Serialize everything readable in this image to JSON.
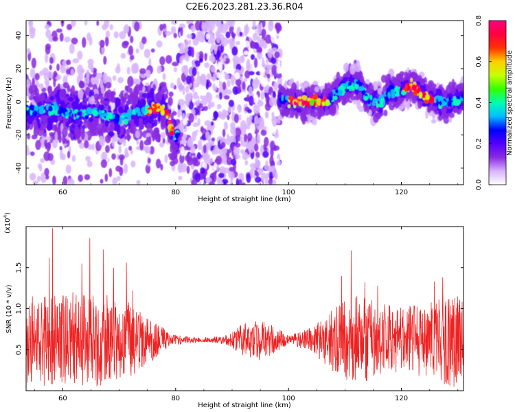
{
  "title": "C2E6.2023.281.23.36.R04",
  "chart_data": [
    {
      "type": "heatmap",
      "xlabel": "Height of straight line (km)",
      "ylabel": "Frequency (Hz)",
      "xlim": [
        53.5,
        131
      ],
      "ylim": [
        -50,
        49
      ],
      "x_ticks": [
        60,
        80,
        100,
        120
      ],
      "x_tick_labels": [
        "60",
        "80",
        "100",
        "120"
      ],
      "y_ticks": [
        40,
        20,
        0,
        -20,
        -40
      ],
      "y_tick_labels": [
        "40",
        "20",
        "0",
        "-20",
        "-40"
      ],
      "colorbar": {
        "label": "Normalized spectral amplitude",
        "range": [
          0,
          0.8
        ],
        "ticks": [
          0,
          0.2,
          0.4,
          0.6,
          0.8
        ],
        "tick_labels": [
          "0.0",
          "0.2",
          "0.4",
          "0.6",
          "0.8"
        ],
        "colors": [
          "#ffffff",
          "#d8b4fe",
          "#8a2be2",
          "#5200ff",
          "#0000ff",
          "#00bfff",
          "#00ffb0",
          "#33ff00",
          "#c8ff00",
          "#ffd000",
          "#ff3300",
          "#ff0040",
          "#ff0080"
        ]
      },
      "ridge": {
        "x": [
          54,
          58,
          62,
          66,
          70,
          74,
          76,
          78,
          80,
          82,
          86,
          90,
          94,
          98,
          100,
          104,
          106,
          108,
          110,
          112,
          114,
          116,
          118,
          120,
          122,
          124,
          126,
          128,
          131
        ],
        "y": [
          -6,
          -4,
          -8,
          -6,
          -10,
          -6,
          -4,
          -4,
          -25,
          5,
          0,
          0,
          0,
          3,
          0,
          0,
          -1,
          4,
          9,
          12,
          2,
          -1,
          6,
          7,
          10,
          3,
          1,
          -1,
          3
        ]
      },
      "noise_band_x": [
        80.5,
        98.5
      ]
    },
    {
      "type": "line",
      "xlabel": "Height of straight line (km)",
      "ylabel": "SNR (10 * v/v)",
      "y_multiplier": "(x10^4)",
      "y_multiplier_base": "(x10",
      "y_multiplier_exp": "4",
      "y_multiplier_close": ")",
      "xlim": [
        53.5,
        131
      ],
      "ylim": [
        0,
        2.0
      ],
      "x_ticks": [
        60,
        80,
        100,
        120
      ],
      "x_tick_labels": [
        "60",
        "80",
        "100",
        "120"
      ],
      "y_ticks": [
        0.5,
        1.0,
        1.5
      ],
      "y_tick_labels": [
        "0.5",
        "1.0",
        "1.5"
      ],
      "series": [
        {
          "color": "#ee2222",
          "baseline": 0.62,
          "amplitude_profile": {
            "x": [
              53.5,
              56,
              60,
              64,
              68,
              72,
              76,
              79,
              82,
              86,
              89,
              92,
              95,
              98,
              100,
              104,
              108,
              112,
              116,
              120,
              124,
              128,
              131
            ],
            "a": [
              0.55,
              0.6,
              0.55,
              0.6,
              0.55,
              0.45,
              0.25,
              0.08,
              0.04,
              0.03,
              0.06,
              0.2,
              0.25,
              0.15,
              0.05,
              0.15,
              0.4,
              0.55,
              0.45,
              0.4,
              0.45,
              0.55,
              0.6
            ]
          },
          "spikes": [
            {
              "x": 58.2,
              "y": 1.98
            },
            {
              "x": 57.6,
              "y": 1.62
            },
            {
              "x": 61.8,
              "y": 1.2
            },
            {
              "x": 63.4,
              "y": 1.55
            },
            {
              "x": 64.8,
              "y": 1.86
            },
            {
              "x": 67.2,
              "y": 1.72
            },
            {
              "x": 69.0,
              "y": 1.5
            },
            {
              "x": 71.3,
              "y": 1.56
            },
            {
              "x": 72.4,
              "y": 1.22
            },
            {
              "x": 111.1,
              "y": 1.71
            },
            {
              "x": 109.4,
              "y": 1.4
            },
            {
              "x": 113.5,
              "y": 1.32
            },
            {
              "x": 115.8,
              "y": 1.28
            },
            {
              "x": 125.8,
              "y": 1.33
            },
            {
              "x": 127.3,
              "y": 1.38
            },
            {
              "x": 130.0,
              "y": 1.15
            }
          ]
        }
      ]
    }
  ]
}
